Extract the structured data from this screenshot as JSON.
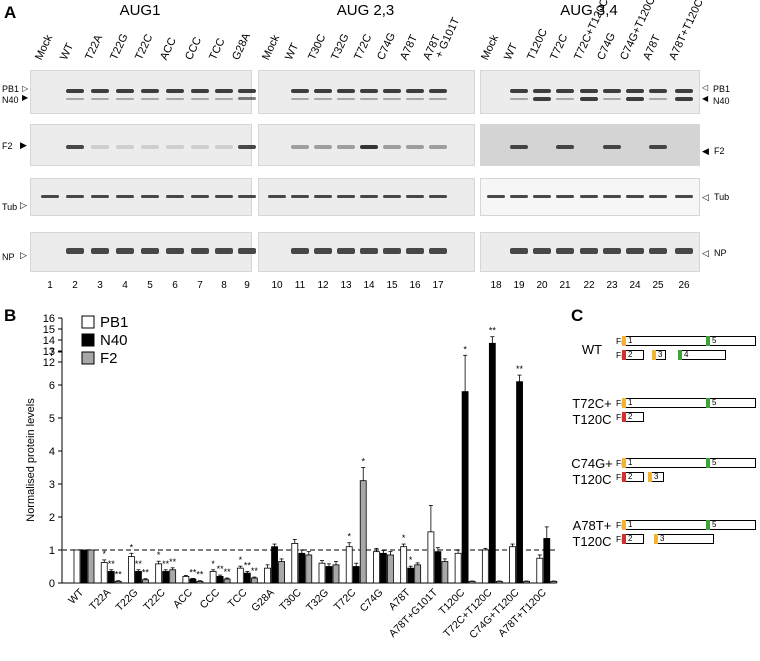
{
  "panelA": {
    "label": "A",
    "groups": [
      {
        "title": "AUG1",
        "lanes": [
          "Mock",
          "WT",
          "T22A",
          "T22G",
          "T22C",
          "ACC",
          "CCC",
          "TCC",
          "G28A"
        ],
        "numbers": [
          "1",
          "2",
          "3",
          "4",
          "5",
          "6",
          "7",
          "8",
          "9"
        ]
      },
      {
        "title": "AUG 2,3",
        "lanes": [
          "Mock",
          "WT",
          "T30C",
          "T32G",
          "T72C",
          "C74G",
          "A78T",
          "A78T\n+ G101T"
        ],
        "numbers": [
          "10",
          "11",
          "12",
          "13",
          "14",
          "15",
          "16",
          "17"
        ]
      },
      {
        "title": "AUG 3,4",
        "lanes": [
          "Mock",
          "WT",
          "T120C",
          "T72C",
          "T72C+T120C",
          "C74G",
          "C74G+T120C",
          "A78T",
          "A78T+T120C"
        ],
        "numbers": [
          "18",
          "19",
          "20",
          "21",
          "22",
          "23",
          "24",
          "25",
          "26"
        ]
      }
    ],
    "left_labels": {
      "pb1": "PB1",
      "n40": "N40",
      "f2": "F2",
      "tub": "Tub",
      "np": "NP"
    },
    "right_labels": {
      "pb1": "PB1",
      "n40": "N40",
      "f2": "F2",
      "tub": "Tub",
      "np": "NP"
    }
  },
  "panelB": {
    "label": "B",
    "chart_data": {
      "type": "bar",
      "ylabel": "Normalised protein levels",
      "categories": [
        "WT",
        "T22A",
        "T22G",
        "T22C",
        "ACC",
        "CCC",
        "TCC",
        "G28A",
        "T30C",
        "T32G",
        "T72C",
        "C74G",
        "A78T",
        "A78T+G101T",
        "T120C",
        "T72C+T120C",
        "C74G+T120C",
        "A78T+T120C"
      ],
      "series": [
        {
          "name": "PB1",
          "color": "#ffffff",
          "values": [
            1,
            0.62,
            0.8,
            0.58,
            0.2,
            0.35,
            0.45,
            0.45,
            1.2,
            0.6,
            1.1,
            0.95,
            1.1,
            1.55,
            0.9,
            1.0,
            1.1,
            0.75
          ]
        },
        {
          "name": "N40",
          "color": "#000000",
          "values": [
            1,
            0.35,
            0.35,
            0.35,
            0.12,
            0.2,
            0.3,
            1.1,
            0.9,
            0.5,
            0.5,
            0.9,
            0.45,
            0.95,
            5.8,
            13.7,
            6.1,
            1.35
          ]
        },
        {
          "name": "F2",
          "color": "#a8a8a8",
          "values": [
            1,
            0.05,
            0.1,
            0.4,
            0.05,
            0.12,
            0.15,
            0.65,
            0.85,
            0.55,
            3.1,
            0.85,
            0.55,
            0.65,
            0.05,
            0.05,
            0.05,
            0.05
          ]
        }
      ],
      "errors": {
        "PB1": [
          0,
          0.08,
          0.1,
          0.08,
          0.03,
          0.05,
          0.06,
          0.1,
          0.12,
          0.08,
          0.12,
          0.1,
          0.08,
          0.8,
          0.1,
          0.05,
          0.08,
          0.1
        ],
        "N40": [
          0,
          0.05,
          0.05,
          0.05,
          0.02,
          0.04,
          0.05,
          0.08,
          0.1,
          0.08,
          0.1,
          0.08,
          0.06,
          0.12,
          1.1,
          0.6,
          0.2,
          0.35
        ],
        "F2": [
          0,
          0.02,
          0.03,
          0.06,
          0.02,
          0.03,
          0.03,
          0.08,
          0.1,
          0.1,
          0.4,
          0.1,
          0.06,
          0.08,
          0.01,
          0.01,
          0.01,
          0.01
        ]
      },
      "significance": {
        "PB1": [
          "",
          "*",
          "*",
          "*",
          "",
          "*",
          "*",
          "",
          "",
          "",
          "*",
          "",
          "*",
          "",
          "",
          "",
          "",
          ""
        ],
        "N40": [
          "",
          "**",
          "**",
          "**",
          "**",
          "**",
          "**",
          "",
          "",
          "",
          "",
          "",
          "*",
          "",
          "*",
          "**",
          "**",
          ""
        ],
        "F2": [
          "",
          "**",
          "**",
          "**",
          "**",
          "**",
          "**",
          "",
          "",
          "",
          "*",
          "",
          "",
          "",
          "",
          "",
          "",
          ""
        ]
      },
      "yticks_lower": [
        "0",
        "1",
        "2",
        "3",
        "4",
        "5",
        "6",
        "7"
      ],
      "yticks_upper": [
        "12",
        "13",
        "14",
        "15",
        "16"
      ],
      "ylim": [
        0,
        16
      ],
      "axis_break": [
        7,
        12
      ],
      "reference_line": 1,
      "legend_placement": "top-left"
    }
  },
  "panelC": {
    "label": "C",
    "constructs": [
      {
        "name": "WT",
        "fr1": {
          "label": "Fr 1",
          "starts": [
            "1",
            "5"
          ]
        },
        "fr2": {
          "label": "Fr 2",
          "starts": [
            "2",
            "3",
            "4"
          ]
        }
      },
      {
        "name": "T72C+\nT120C",
        "fr1": {
          "label": "Fr 1",
          "starts": [
            "1",
            "5"
          ]
        },
        "fr2": {
          "label": "Fr 2",
          "starts": [
            "2"
          ]
        }
      },
      {
        "name": "C74G+\nT120C",
        "fr1": {
          "label": "Fr 1",
          "starts": [
            "1",
            "5"
          ]
        },
        "fr2": {
          "label": "Fr 2",
          "starts": [
            "2",
            "3"
          ]
        }
      },
      {
        "name": "A78T+\nT120C",
        "fr1": {
          "label": "Fr 1",
          "starts": [
            "1",
            "5"
          ]
        },
        "fr2": {
          "label": "Fr 2",
          "starts": [
            "2",
            "3"
          ]
        }
      }
    ],
    "start_colors": {
      "1": "#f2b233",
      "2": "#d32f2f",
      "3": "#f2b233",
      "4": "#3aa63a",
      "5": "#3aa63a"
    }
  }
}
